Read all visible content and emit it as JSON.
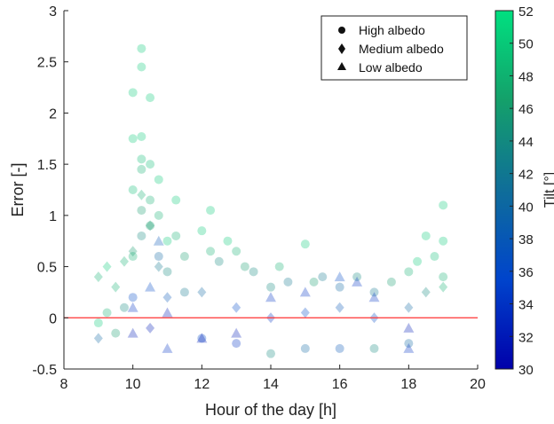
{
  "chart_data": {
    "type": "scatter",
    "title": "",
    "xlabel": "Hour of the day [h]",
    "ylabel": "Error [-]",
    "xlim": [
      8,
      20
    ],
    "ylim": [
      -0.5,
      3
    ],
    "xticks": [
      "8",
      "10",
      "12",
      "14",
      "16",
      "18",
      "20"
    ],
    "yticks": [
      "-0.5",
      "0",
      "0.5",
      "1",
      "1.5",
      "2",
      "2.5",
      "3"
    ],
    "grid": false,
    "legend_position": "top-right",
    "reference_line": {
      "y": 0,
      "color": "#ff3333"
    },
    "colorbar": {
      "label": "Tilt [°]",
      "range": [
        30,
        52
      ],
      "ticks": [
        "30",
        "32",
        "34",
        "36",
        "38",
        "40",
        "42",
        "44",
        "46",
        "48",
        "50",
        "52"
      ],
      "colormap": [
        "#0000aa",
        "#0044cc",
        "#0f6e99",
        "#14a06a",
        "#00e080"
      ]
    },
    "series": [
      {
        "name": "High albedo",
        "marker": "circle",
        "points": [
          [
            9,
            -0.05,
            50
          ],
          [
            9.25,
            0.05,
            48
          ],
          [
            9.5,
            -0.15,
            46
          ],
          [
            9.75,
            0.1,
            44
          ],
          [
            10,
            2.2,
            50
          ],
          [
            10,
            1.75,
            50
          ],
          [
            10,
            1.25,
            49
          ],
          [
            10,
            0.6,
            48
          ],
          [
            10,
            0.2,
            36
          ],
          [
            10.25,
            2.63,
            50
          ],
          [
            10.25,
            2.45,
            50
          ],
          [
            10.25,
            1.77,
            50
          ],
          [
            10.25,
            1.55,
            49
          ],
          [
            10.25,
            1.45,
            48
          ],
          [
            10.25,
            1.05,
            46
          ],
          [
            10.25,
            0.8,
            44
          ],
          [
            10.5,
            2.15,
            50
          ],
          [
            10.5,
            1.5,
            49
          ],
          [
            10.5,
            1.15,
            48
          ],
          [
            10.5,
            0.9,
            46
          ],
          [
            10.75,
            1.35,
            50
          ],
          [
            10.75,
            1.0,
            48
          ],
          [
            10.75,
            0.6,
            40
          ],
          [
            11,
            0.75,
            50
          ],
          [
            11,
            0.45,
            44
          ],
          [
            11.25,
            1.15,
            50
          ],
          [
            11.25,
            0.8,
            48
          ],
          [
            11.5,
            0.6,
            46
          ],
          [
            11.5,
            0.25,
            42
          ],
          [
            12,
            0.85,
            50
          ],
          [
            12.25,
            1.05,
            50
          ],
          [
            12.25,
            0.65,
            48
          ],
          [
            12.5,
            0.55,
            44
          ],
          [
            12.75,
            0.75,
            50
          ],
          [
            13,
            0.65,
            48
          ],
          [
            13.25,
            0.5,
            46
          ],
          [
            13.5,
            0.45,
            44
          ],
          [
            14,
            0.3,
            44
          ],
          [
            14.25,
            0.5,
            48
          ],
          [
            14.5,
            0.35,
            42
          ],
          [
            15,
            0.72,
            50
          ],
          [
            15.25,
            0.35,
            46
          ],
          [
            15.5,
            0.4,
            42
          ],
          [
            16,
            0.3,
            40
          ],
          [
            16.5,
            0.4,
            44
          ],
          [
            17,
            0.25,
            42
          ],
          [
            17.5,
            0.35,
            46
          ],
          [
            18,
            0.45,
            48
          ],
          [
            18.25,
            0.55,
            50
          ],
          [
            18.5,
            0.8,
            50
          ],
          [
            18.75,
            0.6,
            49
          ],
          [
            19,
            1.1,
            50
          ],
          [
            19,
            0.75,
            50
          ],
          [
            19,
            0.4,
            48
          ],
          [
            12,
            -0.2,
            36
          ],
          [
            13,
            -0.25,
            34
          ],
          [
            14,
            -0.35,
            44
          ],
          [
            15,
            -0.3,
            40
          ],
          [
            16,
            -0.3,
            38
          ],
          [
            17,
            -0.3,
            44
          ],
          [
            18,
            -0.25,
            40
          ]
        ]
      },
      {
        "name": "Medium albedo",
        "marker": "diamond",
        "points": [
          [
            9,
            0.4,
            48
          ],
          [
            9.25,
            0.5,
            50
          ],
          [
            9.5,
            0.3,
            48
          ],
          [
            9.75,
            0.55,
            48
          ],
          [
            10,
            0.65,
            46
          ],
          [
            10.25,
            1.2,
            48
          ],
          [
            10.5,
            0.9,
            46
          ],
          [
            10.75,
            0.5,
            42
          ],
          [
            11,
            0.2,
            38
          ],
          [
            12,
            0.25,
            40
          ],
          [
            13,
            0.1,
            36
          ],
          [
            14,
            0.0,
            34
          ],
          [
            15,
            0.05,
            36
          ],
          [
            16,
            0.1,
            38
          ],
          [
            17,
            0.0,
            36
          ],
          [
            18,
            0.1,
            40
          ],
          [
            18.5,
            0.25,
            44
          ],
          [
            19,
            0.3,
            48
          ],
          [
            9,
            -0.2,
            40
          ],
          [
            10.5,
            -0.1,
            32
          ]
        ]
      },
      {
        "name": "Low albedo",
        "marker": "triangle",
        "points": [
          [
            10,
            0.1,
            34
          ],
          [
            10,
            -0.15,
            32
          ],
          [
            10.5,
            0.3,
            36
          ],
          [
            10.75,
            0.75,
            38
          ],
          [
            11,
            -0.3,
            34
          ],
          [
            11,
            0.05,
            32
          ],
          [
            12,
            -0.2,
            32
          ],
          [
            13,
            -0.15,
            32
          ],
          [
            14,
            0.2,
            34
          ],
          [
            15,
            0.25,
            34
          ],
          [
            16,
            0.4,
            36
          ],
          [
            16.5,
            0.35,
            34
          ],
          [
            17,
            0.2,
            34
          ],
          [
            18,
            -0.1,
            32
          ],
          [
            18,
            -0.3,
            34
          ]
        ]
      }
    ]
  }
}
